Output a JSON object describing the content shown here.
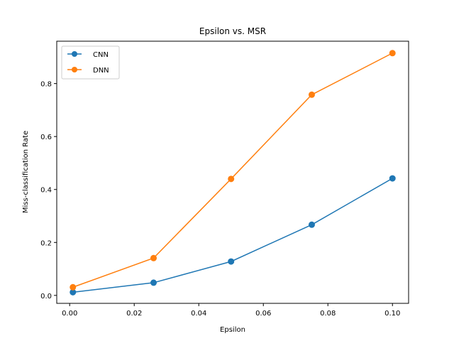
{
  "chart_data": {
    "type": "line",
    "title": "Epsilon vs. MSR",
    "xlabel": "Epsilon",
    "ylabel": "Miss-classification Rate",
    "x": [
      0.001,
      0.026,
      0.05,
      0.075,
      0.1
    ],
    "xlim": [
      -0.004,
      0.105
    ],
    "ylim": [
      -0.03,
      0.96
    ],
    "xticks": [
      0.0,
      0.02,
      0.04,
      0.06,
      0.08,
      0.1
    ],
    "xtick_labels": [
      "0.00",
      "0.02",
      "0.04",
      "0.06",
      "0.08",
      "0.10"
    ],
    "yticks": [
      0.0,
      0.2,
      0.4,
      0.6,
      0.8
    ],
    "ytick_labels": [
      "0.0",
      "0.2",
      "0.4",
      "0.6",
      "0.8"
    ],
    "grid": false,
    "legend_position": "upper left",
    "series": [
      {
        "name": "CNN",
        "color": "#1f77b4",
        "values": [
          0.012,
          0.048,
          0.128,
          0.267,
          0.442
        ]
      },
      {
        "name": "DNN",
        "color": "#ff7f0e",
        "values": [
          0.031,
          0.141,
          0.44,
          0.758,
          0.915
        ]
      }
    ]
  }
}
